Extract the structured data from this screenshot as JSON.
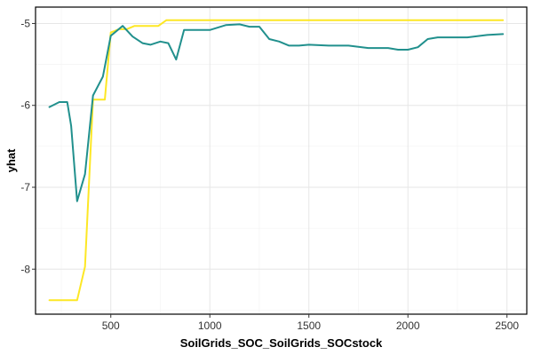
{
  "chart_data": {
    "type": "line",
    "title": "",
    "xlabel": "SoilGrids_SOC_SoilGrids_SOCstock",
    "ylabel": "yhat",
    "xlim": [
      120,
      2600
    ],
    "ylim": [
      -8.55,
      -4.8
    ],
    "x_ticks": [
      500,
      1000,
      1500,
      2000,
      2500
    ],
    "x_tick_labels": [
      "500",
      "1000",
      "1500",
      "2000",
      "2500"
    ],
    "y_ticks": [
      -8,
      -7,
      -6,
      -5
    ],
    "y_tick_labels": [
      "-8",
      "-7",
      "-6",
      "-5"
    ],
    "grid": true,
    "legend": "none",
    "series": [
      {
        "color": "#fde725",
        "x": [
          190,
          240,
          290,
          330,
          370,
          410,
          440,
          470,
          500,
          540,
          580,
          620,
          660,
          700,
          740,
          780,
          830,
          900,
          1000,
          1200,
          1500,
          2000,
          2480
        ],
        "y": [
          -8.38,
          -8.38,
          -8.38,
          -8.38,
          -7.97,
          -5.93,
          -5.93,
          -5.93,
          -5.11,
          -5.07,
          -5.07,
          -5.03,
          -5.03,
          -5.03,
          -5.03,
          -4.96,
          -4.96,
          -4.96,
          -4.96,
          -4.96,
          -4.96,
          -4.96,
          -4.96
        ]
      },
      {
        "color": "#21908d",
        "x": [
          190,
          240,
          280,
          300,
          330,
          370,
          410,
          460,
          500,
          560,
          610,
          660,
          700,
          750,
          790,
          830,
          870,
          920,
          1000,
          1080,
          1150,
          1200,
          1250,
          1300,
          1350,
          1400,
          1450,
          1500,
          1600,
          1700,
          1800,
          1900,
          1950,
          2000,
          2050,
          2100,
          2150,
          2200,
          2300,
          2400,
          2480
        ],
        "y": [
          -6.02,
          -5.96,
          -5.96,
          -6.25,
          -7.17,
          -6.84,
          -5.88,
          -5.65,
          -5.15,
          -5.03,
          -5.16,
          -5.24,
          -5.26,
          -5.22,
          -5.24,
          -5.44,
          -5.08,
          -5.08,
          -5.08,
          -5.02,
          -5.01,
          -5.04,
          -5.04,
          -5.19,
          -5.22,
          -5.27,
          -5.27,
          -5.26,
          -5.27,
          -5.27,
          -5.3,
          -5.3,
          -5.32,
          -5.32,
          -5.29,
          -5.19,
          -5.17,
          -5.17,
          -5.17,
          -5.14,
          -5.13
        ]
      }
    ]
  }
}
